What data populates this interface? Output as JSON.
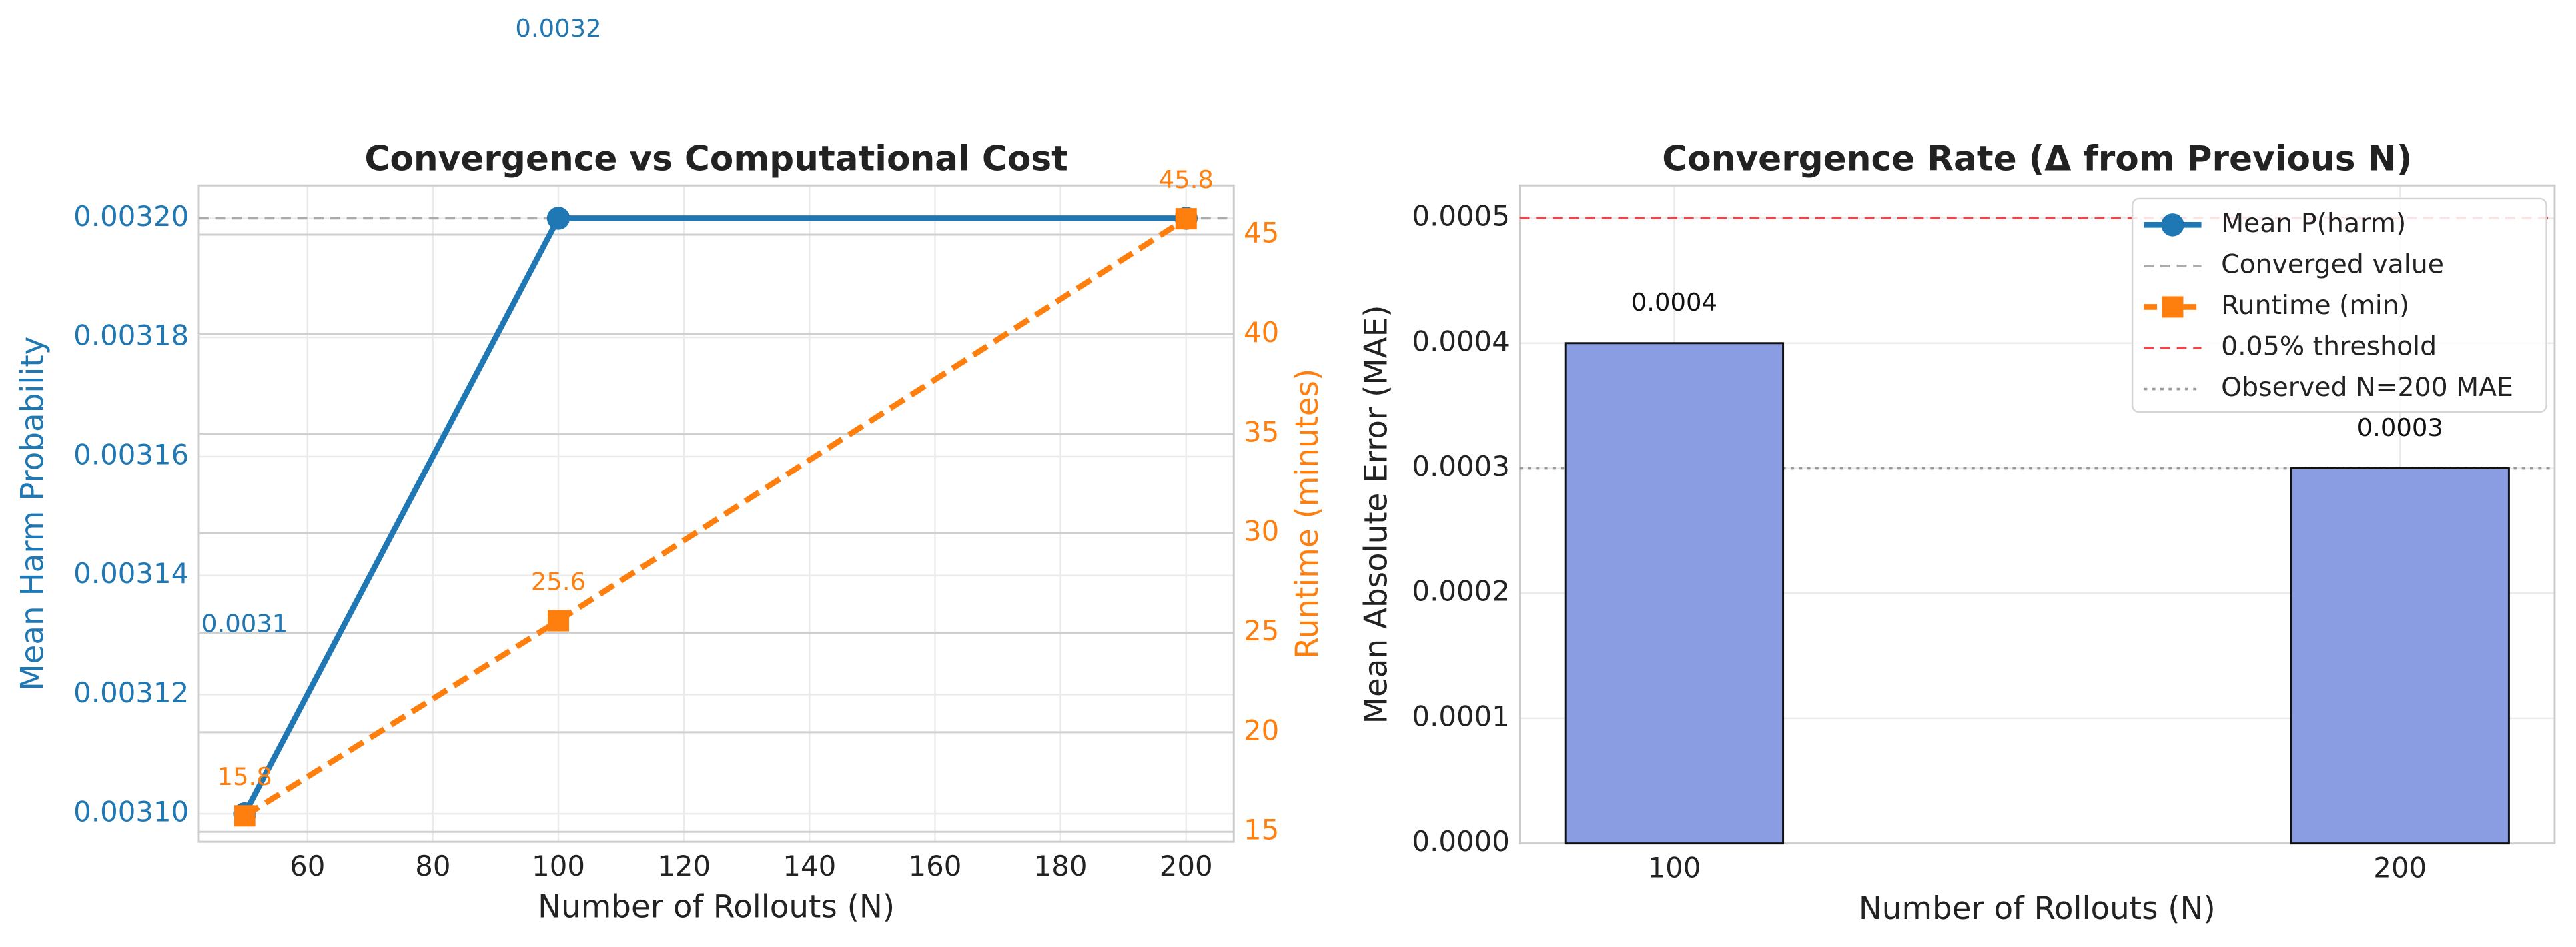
{
  "chart_data": [
    {
      "type": "line",
      "title": "Convergence vs Computational Cost",
      "x_label": "Number of Rollouts (N)",
      "y_label": "Mean Harm Probability",
      "y2_label": "Runtime (minutes)",
      "x": [
        50,
        100,
        200
      ],
      "series": [
        {
          "name": "Mean P(harm)",
          "color": "#1f77b4",
          "marker": "circle",
          "line_style": "solid",
          "values": [
            0.0031,
            0.0032,
            0.0032
          ],
          "value_labels": [
            "0.0031",
            "0.0032",
            null
          ]
        },
        {
          "name": "Runtime (min)",
          "color": "#ff7f0e",
          "marker": "square",
          "line_style": "dashed",
          "axis": "y2",
          "values": [
            15.8,
            25.6,
            45.8
          ]
        }
      ],
      "reference_lines": [
        {
          "name": "Converged value",
          "value": 0.0032,
          "color": "#aaaaaa",
          "style": "dashed"
        }
      ],
      "xlim": [
        42.7,
        207.6
      ],
      "xticks": [
        60,
        80,
        100,
        120,
        140,
        160,
        180,
        200
      ],
      "ylim": [
        0.0030953,
        0.0032055
      ],
      "yticks": [
        {
          "value": 0.0031,
          "label": "0.00310"
        },
        {
          "value": 0.00312,
          "label": "0.00312"
        },
        {
          "value": 0.00314,
          "label": "0.00314"
        },
        {
          "value": 0.00316,
          "label": "0.00316"
        },
        {
          "value": 0.00318,
          "label": "0.00318"
        },
        {
          "value": 0.0032,
          "label": "0.00320"
        }
      ],
      "y2lim": [
        14.5,
        47.47
      ],
      "y2ticks": [
        15,
        20,
        25,
        30,
        35,
        40,
        45
      ],
      "grid": true
    },
    {
      "type": "bar",
      "title": "Convergence Rate (Δ from Previous N)",
      "x_label": "Number of Rollouts (N)",
      "y_label": "Mean Absolute Error (MAE)",
      "x": [
        100,
        200
      ],
      "values": [
        0.0004,
        0.0003
      ],
      "color": "#8a9de3",
      "reference_lines": [
        {
          "name": "0.05% threshold",
          "value": 0.0005,
          "color": "#e8474c",
          "style": "dashed"
        },
        {
          "name": "Observed N=200 MAE",
          "value": 0.0003,
          "color": "#999999",
          "style": "dotted"
        }
      ],
      "xlim": [
        78.7,
        221.3
      ],
      "xticks": [
        100,
        200
      ],
      "ylim": [
        0,
        0.000526
      ],
      "yticks": [
        {
          "value": 0,
          "label": "0.0000"
        },
        {
          "value": 0.0001,
          "label": "0.0001"
        },
        {
          "value": 0.0002,
          "label": "0.0002"
        },
        {
          "value": 0.0003,
          "label": "0.0003"
        },
        {
          "value": 0.0004,
          "label": "0.0004"
        },
        {
          "value": 0.0005,
          "label": "0.0005"
        }
      ],
      "grid": true,
      "legend": "upper right"
    }
  ]
}
